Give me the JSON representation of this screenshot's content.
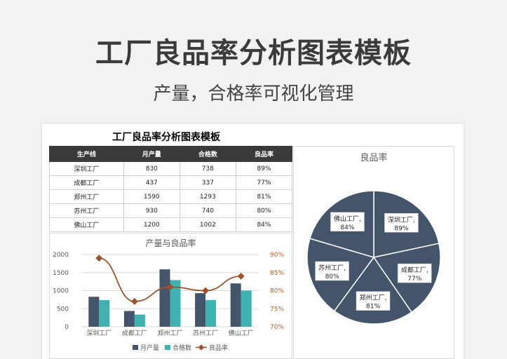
{
  "header": {
    "title": "工厂良品率分析图表模板",
    "subtitle": "产量，合格率可视化管理"
  },
  "sheet": {
    "title": "工厂良品率分析图表模板",
    "table": {
      "headers": [
        "生产线",
        "月产量",
        "合格数",
        "良品率"
      ],
      "rows": [
        [
          "深圳工厂",
          "830",
          "738",
          "89%"
        ],
        [
          "成都工厂",
          "437",
          "337",
          "77%"
        ],
        [
          "郑州工厂",
          "1590",
          "1293",
          "81%"
        ],
        [
          "苏州工厂",
          "930",
          "740",
          "80%"
        ],
        [
          "佛山工厂",
          "1200",
          "1002",
          "84%"
        ]
      ]
    }
  },
  "chart_data": [
    {
      "type": "bar",
      "title": "产量与良品率",
      "categories": [
        "深圳工厂",
        "成都工厂",
        "郑州工厂",
        "苏州工厂",
        "佛山工厂"
      ],
      "series": [
        {
          "name": "月产量",
          "kind": "bar",
          "axis": "left",
          "color": "#44546a",
          "values": [
            830,
            437,
            1590,
            930,
            1200
          ]
        },
        {
          "name": "合格数",
          "kind": "bar",
          "axis": "left",
          "color": "#3fb2b2",
          "values": [
            738,
            337,
            1293,
            740,
            1002
          ]
        },
        {
          "name": "良品率",
          "kind": "line",
          "axis": "right",
          "color": "#a0522d",
          "values": [
            89,
            77,
            81,
            80,
            84
          ]
        }
      ],
      "ylim": [
        0,
        2000
      ],
      "yticks": [
        "0",
        "500",
        "1000",
        "1500",
        "2000"
      ],
      "y2lim": [
        70,
        90
      ],
      "y2ticks": [
        "70%",
        "75%",
        "80%",
        "85%",
        "90%"
      ],
      "legend": "bottom",
      "grid": true
    },
    {
      "type": "pie",
      "title": "良品率",
      "labels": [
        "深圳工厂",
        "成都工厂",
        "郑州工厂",
        "苏州工厂",
        "佛山工厂"
      ],
      "values": [
        89,
        77,
        81,
        80,
        84
      ],
      "value_labels": [
        "89%",
        "77%",
        "81%",
        "80%",
        "84%"
      ],
      "color": "#44546a"
    }
  ]
}
